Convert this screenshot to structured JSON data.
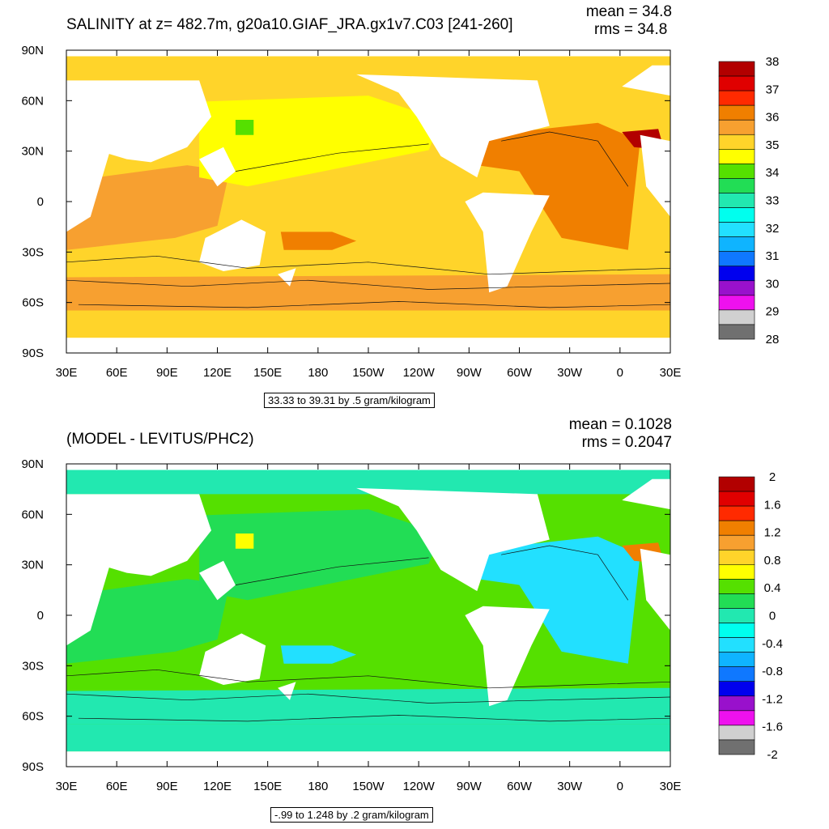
{
  "chart_data": [
    {
      "type": "heatmap",
      "title": "SALINITY at z= 482.7m, g20a10.GIAF_JRA.gx1v7.C03 [241-260]",
      "mean_text": "mean = 34.8",
      "rms_text": "rms = 34.8",
      "contour_info": "33.33 to 39.31 by .5 gram/kilogram",
      "xticks": [
        "30E",
        "60E",
        "90E",
        "120E",
        "150E",
        "180",
        "150W",
        "120W",
        "90W",
        "60W",
        "30W",
        "0",
        "30E"
      ],
      "yticks": [
        "90N",
        "60N",
        "30N",
        "0",
        "30S",
        "60S",
        "90S"
      ],
      "colorbar": {
        "labels": [
          "38",
          "37",
          "36",
          "35",
          "34",
          "33",
          "32",
          "31",
          "30",
          "29",
          "28"
        ],
        "colors": [
          "#b20000",
          "#e00000",
          "#ff2a00",
          "#f07f00",
          "#f7a030",
          "#ffd42a",
          "#ffff00",
          "#55e000",
          "#22dd55",
          "#22e8b0",
          "#00ffee",
          "#22e0ff",
          "#0fb4ff",
          "#0f78ff",
          "#0000ee",
          "#9911cc",
          "#ee11ee",
          "#d0d0d0",
          "#707070"
        ]
      },
      "colors": {
        "land": "#ffffff",
        "ocean_main": "#ffd42a",
        "indian": "#f7a030",
        "gulf": "#f07f00",
        "pacific_n": "#ffff00",
        "southern": "#ffd42a",
        "southern_band": "#f7a030",
        "arctic": "#ffd42a",
        "med": "#b20000",
        "fresh": "#55e000"
      }
    },
    {
      "type": "heatmap",
      "title": "(MODEL - LEVITUS/PHC2)",
      "mean_text": "mean = 0.1028",
      "rms_text": "rms = 0.2047",
      "contour_info": "-.99 to 1.248 by .2 gram/kilogram",
      "xticks": [
        "30E",
        "60E",
        "90E",
        "120E",
        "150E",
        "180",
        "150W",
        "120W",
        "90W",
        "60W",
        "30W",
        "0",
        "30E"
      ],
      "yticks": [
        "90N",
        "60N",
        "30N",
        "0",
        "30S",
        "60S",
        "90S"
      ],
      "colorbar": {
        "labels": [
          "2",
          "1.6",
          "1.2",
          "0.8",
          "0.4",
          "0",
          "-0.4",
          "-0.8",
          "-1.2",
          "-1.6",
          "-2"
        ],
        "colors": [
          "#b20000",
          "#e00000",
          "#ff2a00",
          "#f07f00",
          "#f7a030",
          "#ffd42a",
          "#ffff00",
          "#55e000",
          "#22dd55",
          "#22e8b0",
          "#00ffee",
          "#22e0ff",
          "#0fb4ff",
          "#0f78ff",
          "#0000ee",
          "#9911cc",
          "#ee11ee",
          "#d0d0d0",
          "#707070"
        ]
      },
      "colors": {
        "land": "#ffffff",
        "ocean_main": "#55e000",
        "indian": "#22dd55",
        "gulf": "#22e0ff",
        "pacific_n": "#22dd55",
        "southern": "#22e8b0",
        "southern_band": "#22e8b0",
        "arctic": "#22e8b0",
        "med": "#f07f00",
        "fresh": "#ffff00"
      }
    }
  ]
}
